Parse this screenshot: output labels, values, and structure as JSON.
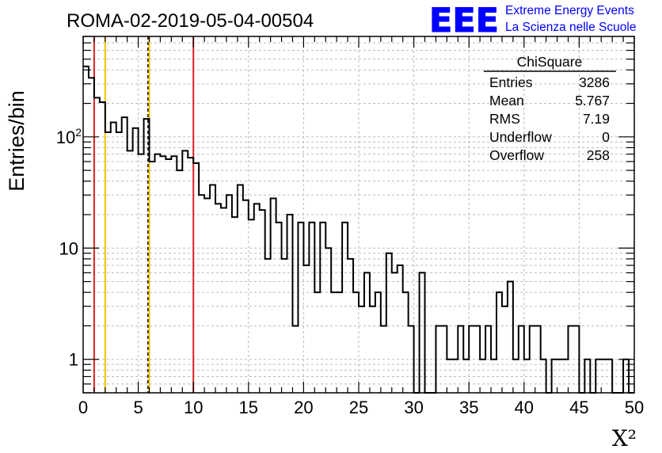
{
  "run_title": "ROMA-02-2019-05-04-00504",
  "logo": {
    "text": "EEE",
    "line1": "Extreme Energy Events",
    "line2": "La Scienza nelle Scuole",
    "color": "#0000ff"
  },
  "stats": {
    "name": "ChiSquare",
    "rows": [
      {
        "label": "Entries",
        "value": "3286"
      },
      {
        "label": "Mean",
        "value": "5.767"
      },
      {
        "label": "RMS",
        "value": "7.19"
      },
      {
        "label": "Underflow",
        "value": "0"
      },
      {
        "label": "Overflow",
        "value": "258"
      }
    ]
  },
  "chart_data": {
    "type": "bar",
    "title": "ROMA-02-2019-05-04-00504",
    "xlabel": "X²",
    "ylabel": "Entries/bin",
    "xlim": [
      0,
      50
    ],
    "ylim": [
      0.5,
      800
    ],
    "yscale": "log",
    "grid": true,
    "bin_width": 0.5,
    "x_ticks": [
      "0",
      "5",
      "10",
      "15",
      "20",
      "25",
      "30",
      "35",
      "40",
      "45",
      "50"
    ],
    "y_ticks": [
      {
        "value": 1,
        "label": "1"
      },
      {
        "value": 10,
        "label": "10"
      },
      {
        "value": 100,
        "label": "10",
        "exponent": "2"
      }
    ],
    "counts": [
      430,
      340,
      225,
      205,
      110,
      135,
      110,
      150,
      75,
      120,
      70,
      145,
      60,
      70,
      67,
      63,
      67,
      50,
      75,
      65,
      58,
      30,
      28,
      37,
      25,
      23,
      30,
      19,
      37,
      27,
      18,
      25,
      22,
      8,
      28,
      17,
      8,
      20,
      2,
      17,
      7,
      17,
      4,
      17,
      10,
      4,
      4,
      17,
      8,
      4,
      3,
      6,
      3,
      4,
      2,
      9,
      6,
      7,
      4,
      2,
      0,
      6,
      0,
      0,
      2,
      2,
      1,
      1,
      2,
      1,
      2,
      2,
      1,
      2,
      1,
      4,
      3,
      5,
      1,
      2,
      1,
      2,
      2,
      1,
      0,
      1,
      1,
      1,
      2,
      2,
      0,
      1,
      0,
      1,
      1,
      1,
      0,
      0,
      1,
      0
    ],
    "vertical_lines": [
      {
        "x": 1,
        "color": "#dd2222",
        "style": "solid"
      },
      {
        "x": 2,
        "color": "#f2c200",
        "style": "solid"
      },
      {
        "x": 5.9,
        "color": "#000000",
        "style": "dashed"
      },
      {
        "x": 6,
        "color": "#f2c200",
        "style": "solid"
      },
      {
        "x": 10,
        "color": "#dd2222",
        "style": "solid"
      }
    ]
  }
}
